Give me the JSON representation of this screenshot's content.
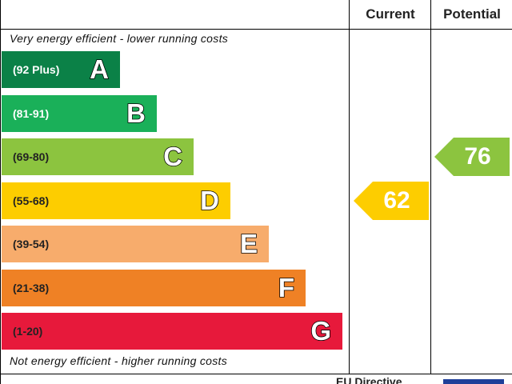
{
  "chart_data": {
    "type": "bar",
    "headers": {
      "current": "Current",
      "potential": "Potential"
    },
    "top_caption": "Very energy efficient - lower running costs",
    "bottom_caption": "Not energy efficient - higher running costs",
    "bands": [
      {
        "letter": "A",
        "range": "(92 Plus)",
        "min": 92,
        "max": 100,
        "color": "#0b8147"
      },
      {
        "letter": "B",
        "range": "(81-91)",
        "min": 81,
        "max": 91,
        "color": "#1ab059"
      },
      {
        "letter": "C",
        "range": "(69-80)",
        "min": 69,
        "max": 80,
        "color": "#8cc43f"
      },
      {
        "letter": "D",
        "range": "(55-68)",
        "min": 55,
        "max": 68,
        "color": "#fdcd00"
      },
      {
        "letter": "E",
        "range": "(39-54)",
        "min": 39,
        "max": 54,
        "color": "#f7ac6c"
      },
      {
        "letter": "F",
        "range": "(21-38)",
        "min": 21,
        "max": 38,
        "color": "#ef8125"
      },
      {
        "letter": "G",
        "range": "(1-20)",
        "min": 1,
        "max": 20,
        "color": "#e7193b"
      }
    ],
    "current": {
      "value": 62,
      "band": "D",
      "color": "#fdcd00"
    },
    "potential": {
      "value": 76,
      "band": "C",
      "color": "#8cc43f"
    },
    "footer_text": "EU Directive"
  }
}
